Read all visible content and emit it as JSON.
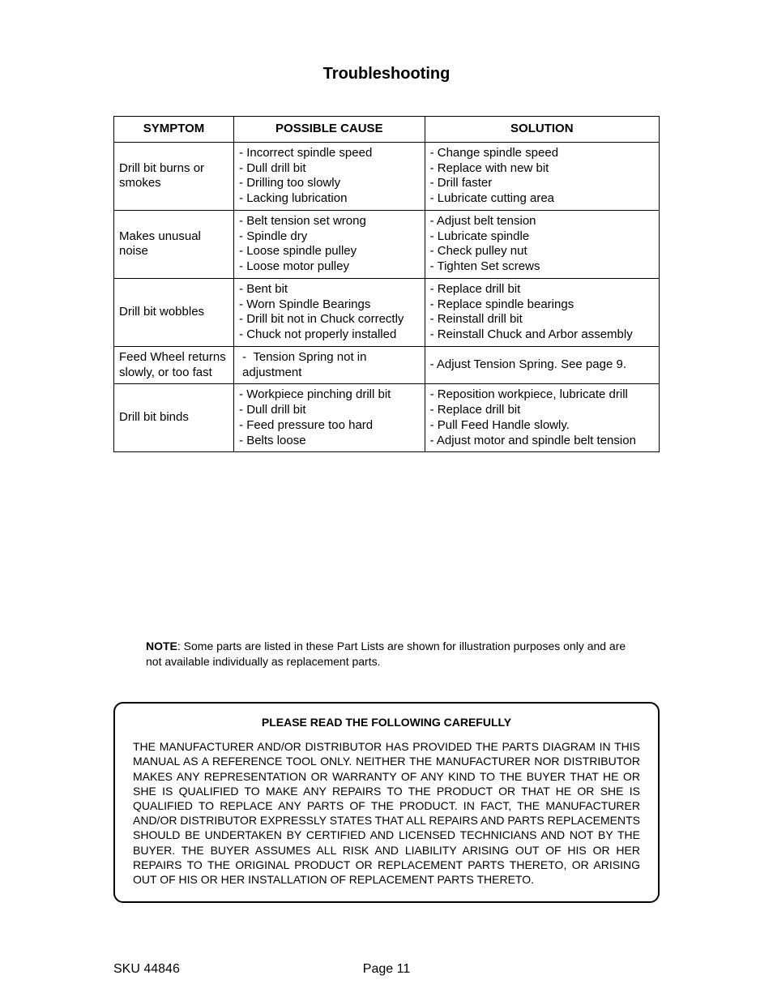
{
  "title": "Troubleshooting",
  "table": {
    "headers": {
      "symptom": "SYMPTOM",
      "cause": "POSSIBLE CAUSE",
      "solution": "SOLUTION"
    },
    "rows": [
      {
        "symptom": "Drill bit burns or smokes",
        "causes": [
          "- Incorrect spindle speed",
          "- Dull drill bit",
          "- Drilling too slowly",
          "- Lacking lubrication"
        ],
        "solutions": [
          "- Change spindle speed",
          "- Replace with new bit",
          "- Drill faster",
          "- Lubricate cutting area"
        ]
      },
      {
        "symptom": "Makes unusual noise",
        "causes": [
          "- Belt tension set wrong",
          "- Spindle dry",
          "- Loose spindle pulley",
          "- Loose motor pulley"
        ],
        "solutions": [
          "- Adjust belt tension",
          "- Lubricate spindle",
          "- Check pulley nut",
          "- Tighten Set screws"
        ]
      },
      {
        "symptom": "Drill bit wobbles",
        "causes": [
          "- Bent bit",
          "- Worn Spindle Bearings",
          "- Drill bit not in Chuck correctly",
          "- Chuck not properly installed"
        ],
        "solutions": [
          "- Replace drill bit",
          "- Replace spindle bearings",
          "- Reinstall drill bit",
          "- Reinstall Chuck and Arbor assembly"
        ]
      },
      {
        "symptom": "Feed Wheel returns slowly, or too fast",
        "causes": [
          "-  Tension Spring not in adjustment"
        ],
        "solutions": [
          "- Adjust Tension Spring. See page 9."
        ]
      },
      {
        "symptom": "Drill bit binds",
        "causes": [
          "- Workpiece pinching drill bit",
          "- Dull drill bit",
          "- Feed pressure too hard",
          "- Belts loose"
        ],
        "solutions": [
          "- Reposition workpiece, lubricate drill",
          "- Replace drill bit",
          "- Pull Feed Handle slowly.",
          "- Adjust motor and spindle belt tension"
        ]
      }
    ]
  },
  "note": {
    "label": "NOTE",
    "text": ": Some parts are listed in these Part Lists are shown for illustration purposes only and are not available individually as replacement parts."
  },
  "warning": {
    "heading": "PLEASE READ THE FOLLOWING CAREFULLY",
    "body": "THE MANUFACTURER AND/OR DISTRIBUTOR HAS PROVIDED THE PARTS DIAGRAM IN THIS MANUAL AS A REFERENCE TOOL ONLY.  NEITHER THE MANUFACTURER NOR DISTRIBUTOR MAKES ANY REPRESENTATION OR WARRANTY OF ANY KIND TO THE BUYER THAT HE OR SHE IS QUALIFIED TO MAKE ANY REPAIRS TO THE PRODUCT OR THAT HE OR SHE IS QUALIFIED TO REPLACE ANY PARTS OF THE PRODUCT.  IN FACT, THE MANUFACTURER AND/OR DISTRIBUTOR EXPRESSLY STATES THAT ALL REPAIRS AND PARTS REPLACEMENTS SHOULD BE UNDERTAKEN BY CERTIFIED AND LICENSED TECHNICIANS AND NOT BY THE BUYER. THE BUYER ASSUMES ALL RISK AND LIABILITY ARISING OUT OF HIS OR HER REPAIRS TO THE ORIGINAL PRODUCT OR REPLACEMENT PARTS THERETO, OR ARISING OUT OF HIS OR HER INSTALLATION OF REPLACEMENT PARTS THERETO."
  },
  "footer": {
    "sku": "SKU 44846",
    "page": "Page 11"
  }
}
